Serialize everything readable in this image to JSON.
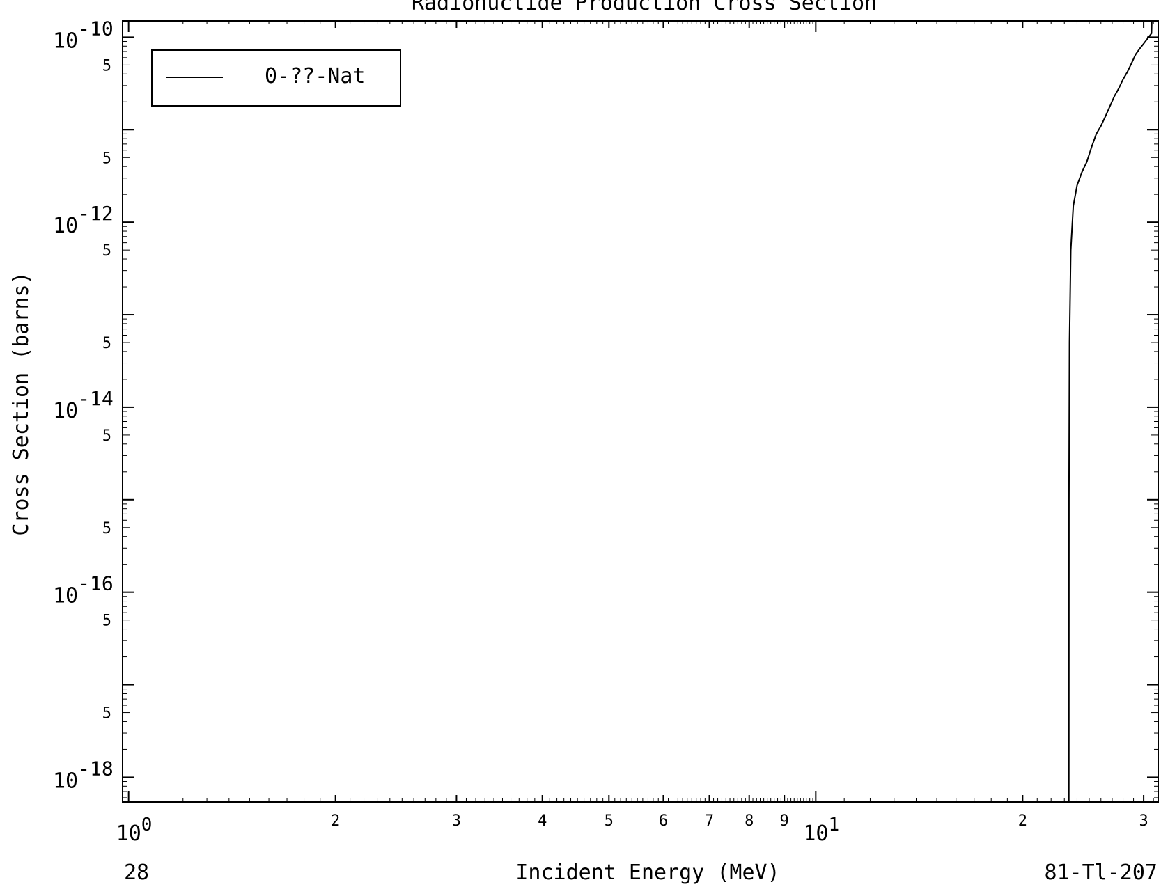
{
  "chart_data": {
    "type": "line",
    "title": "Radionuclide Production Cross Section",
    "xlabel": "Incident Energy (MeV)",
    "ylabel": "Cross Section (barns)",
    "x_scale": "log",
    "y_scale": "log",
    "xlim": [
      0.98,
      31.5
    ],
    "ylim": [
      5.4e-19,
      1.5e-10
    ],
    "x_major_ticks": [
      {
        "value": 1,
        "base": "10",
        "exp": "0"
      },
      {
        "value": 10,
        "base": "10",
        "exp": "1"
      }
    ],
    "x_minor_labels": [
      {
        "value": 2,
        "label": "2"
      },
      {
        "value": 3,
        "label": "3"
      },
      {
        "value": 4,
        "label": "4"
      },
      {
        "value": 5,
        "label": "5"
      },
      {
        "value": 6,
        "label": "6"
      },
      {
        "value": 7,
        "label": "7"
      },
      {
        "value": 8,
        "label": "8"
      },
      {
        "value": 9,
        "label": "9"
      },
      {
        "value": 20,
        "label": "2"
      },
      {
        "value": 30,
        "label": "3"
      }
    ],
    "y_major_labels": [
      {
        "value": 1e-10,
        "base": "10",
        "exp": "-10"
      },
      {
        "value": 1e-12,
        "base": "10",
        "exp": "-12"
      },
      {
        "value": 1e-14,
        "base": "10",
        "exp": "-14"
      },
      {
        "value": 1e-16,
        "base": "10",
        "exp": "-16"
      },
      {
        "value": 1e-18,
        "base": "10",
        "exp": "-18"
      }
    ],
    "y_five_labels": [
      {
        "value": 5e-11,
        "label": "5"
      },
      {
        "value": 5e-12,
        "label": "5"
      },
      {
        "value": 5e-13,
        "label": "5"
      },
      {
        "value": 5e-14,
        "label": "5"
      },
      {
        "value": 5e-15,
        "label": "5"
      },
      {
        "value": 5e-16,
        "label": "5"
      },
      {
        "value": 5e-17,
        "label": "5"
      },
      {
        "value": 5e-18,
        "label": "5"
      }
    ],
    "series": [
      {
        "name": "0-??-Nat",
        "color": "#000000",
        "x": [
          23.35,
          23.36,
          23.4,
          23.5,
          23.7,
          24.0,
          24.4,
          24.8,
          25.2,
          25.6,
          26.0,
          26.4,
          26.8,
          27.2,
          27.6,
          28.0,
          28.4,
          28.8,
          29.2,
          29.6,
          30.0,
          30.5,
          30.8,
          30.83
        ],
        "y": [
          5.4e-19,
          1e-15,
          5e-14,
          5e-13,
          1.5e-12,
          2.5e-12,
          3.5e-12,
          4.5e-12,
          6.5e-12,
          9e-12,
          1.1e-11,
          1.4e-11,
          1.8e-11,
          2.3e-11,
          2.8e-11,
          3.5e-11,
          4.2e-11,
          5.2e-11,
          6.5e-11,
          7.5e-11,
          8.5e-11,
          1e-10,
          1.1e-10,
          1.5e-10
        ]
      }
    ],
    "legend": {
      "position": "top-left"
    },
    "grid": false,
    "footer_left": "28",
    "footer_right": "81-Tl-207"
  }
}
